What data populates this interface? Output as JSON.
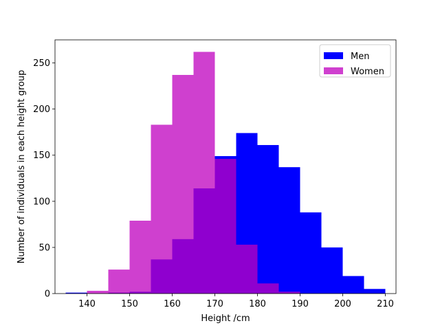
{
  "chart_data": {
    "type": "histogram",
    "title": "",
    "xlabel": "Height /cm",
    "ylabel": "Number of individuals in each height group",
    "xlim": [
      132.5,
      212.5
    ],
    "ylim": [
      0,
      275
    ],
    "xticks": [
      140,
      150,
      160,
      170,
      180,
      190,
      200,
      210
    ],
    "yticks": [
      0,
      50,
      100,
      150,
      200,
      250
    ],
    "bin_edges": [
      135,
      140,
      145,
      150,
      155,
      160,
      165,
      170,
      175,
      180,
      185,
      190,
      195,
      200,
      205,
      210
    ],
    "grid": false,
    "legend_position": "top-right",
    "series": [
      {
        "name": "Men",
        "color": "#0000ff",
        "opacity": 1.0,
        "values": [
          1,
          0,
          1,
          2,
          37,
          59,
          114,
          149,
          174,
          161,
          137,
          88,
          50,
          19,
          5
        ]
      },
      {
        "name": "Women",
        "color": "#bf00bf",
        "opacity": 0.75,
        "values": [
          0,
          3,
          26,
          79,
          183,
          237,
          262,
          146,
          53,
          11,
          2,
          0,
          0,
          0,
          0
        ]
      }
    ]
  }
}
